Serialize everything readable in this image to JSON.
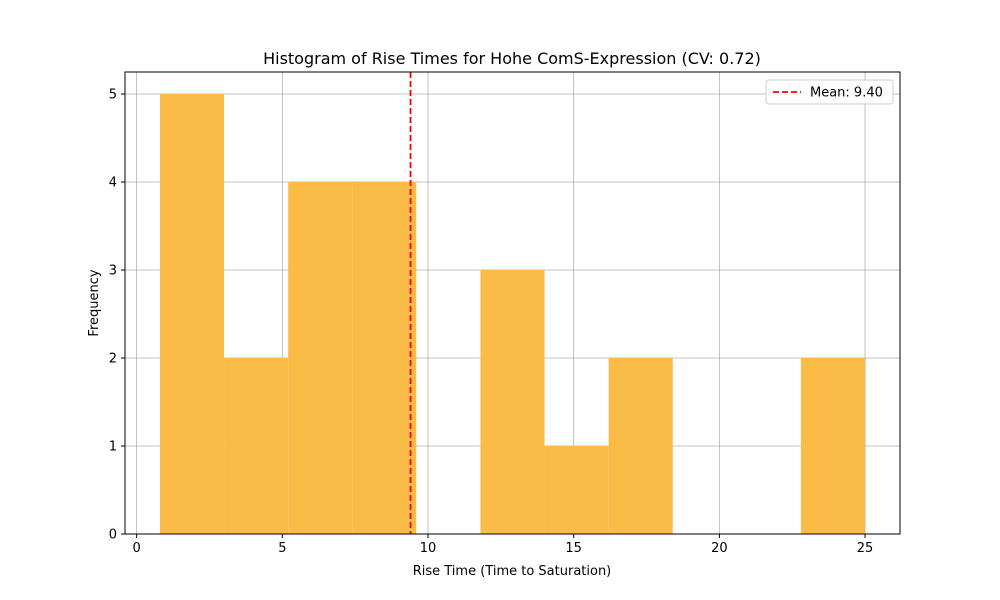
{
  "chart_data": {
    "type": "bar",
    "subtype": "histogram",
    "title": "Histogram of Rise Times for Hohe ComS-Expression (CV: 0.72)",
    "xlabel": "Rise Time (Time to Saturation)",
    "ylabel": "Frequency",
    "xlim": [
      -0.4,
      26.2
    ],
    "ylim": [
      0,
      5.25
    ],
    "xticks": [
      0,
      5,
      10,
      15,
      20,
      25
    ],
    "yticks": [
      0,
      1,
      2,
      3,
      4,
      5
    ],
    "bin_edges": [
      0.8,
      3.0,
      5.2,
      7.4,
      9.6,
      11.8,
      14.0,
      16.2,
      18.4,
      20.6,
      22.8,
      25.0
    ],
    "counts": [
      5,
      2,
      4,
      4,
      0,
      3,
      1,
      2,
      0,
      0,
      2
    ],
    "bar_color": "#fbbc47",
    "mean": {
      "value": 9.4,
      "label": "Mean: 9.40",
      "color": "#ff0000"
    },
    "legend": {
      "position": "top-right",
      "entries": [
        "Mean: 9.40"
      ]
    },
    "grid": true
  }
}
